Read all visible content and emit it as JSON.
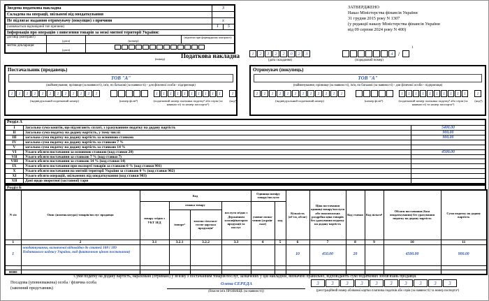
{
  "doc": {
    "title": "Податкова накладна",
    "approved": {
      "l1": "ЗАТВЕРДЖЕНО",
      "l2": "Наказ Міністерства фінансів України",
      "l3": "31 грудня 2015 року N 1307",
      "l4": "(у редакції наказу Міністерства фінансів України",
      "l5": "від 09 серпня 2024 року N 400)"
    }
  },
  "flags": {
    "zvedena_label": "Зведена податкова накладна",
    "zvedena_value": "3",
    "exempt_label": "Складена на операції, звільнені від оподаткування",
    "exempt_value": "",
    "not_issued_label": "Не підлягає наданню отримувачу (покупцю) з причини",
    "not_issued_value": "х",
    "reason_caption": "(зазначається відповідний тип причини)",
    "reason_type": [
      "1",
      "5"
    ],
    "export_label": "Інформація про операцію з вивезення товарів за межі митної території України:",
    "contract": {
      "label": "договір (контракт)",
      "date_caption": "(дата)",
      "number_caption": "(номер)",
      "forward_caption": "(відмітка при форвардному контракті)"
    },
    "customs": {
      "label": "митна декларація",
      "date_caption": "(дата)",
      "number_caption": "(номер)",
      "boxes": [
        "",
        "",
        "",
        "",
        "",
        "",
        "",
        "",
        "",
        "",
        "",
        "",
        ""
      ]
    }
  },
  "header": {
    "date_boxes": [
      "1",
      "2",
      "1",
      "2",
      "2",
      "0",
      "2",
      "3"
    ],
    "date_caption": "(дата складання)",
    "number_boxes": [
      "",
      "",
      "",
      "",
      "",
      "",
      "4"
    ],
    "slash": "/",
    "suffix_box": [
      ""
    ],
    "suffix_footnote": "1",
    "number_caption": "(порядковий номер)"
  },
  "supplier": {
    "title": "Постачальник (продавець)",
    "name": "ТОВ \"А\"",
    "name_caption": "(найменування; прізвище (за наявності), ім'я, по батькові (за наявності) - для фізичної особи - підприємця)",
    "ipn": [
      "1",
      "1",
      "1",
      "1",
      "1",
      "1",
      "1",
      "1",
      "1",
      "1",
      "1",
      "1"
    ],
    "ipn_caption": "(індивідуальний податковий номер)",
    "branch": [
      "",
      "",
      "",
      "",
      ""
    ],
    "branch_caption": "(номер філії²)",
    "tax_number": [
      "1",
      "1",
      "1",
      "1",
      "1",
      "1",
      "1",
      "1",
      "1",
      "1"
    ],
    "tax_caption": "(податковий номер платника податку³ або серія (за наявності) та номер паспорта⁵)",
    "kod": [
      "1"
    ],
    "kod_caption": "(код⁴)"
  },
  "buyer": {
    "title": "Отримувач (покупець)",
    "name": "ТОВ \"А\"",
    "name_caption": "(найменування; прізвище (за наявності), ім'я, по батькові (за наявності) - для фізичної особи - підприємця)",
    "ipn": [
      "1",
      "1",
      "1",
      "1",
      "1",
      "1",
      "1",
      "1",
      "1",
      "1",
      "1",
      "1"
    ],
    "ipn_caption": "(індивідуальний податковий номер)",
    "branch": [
      "",
      "",
      "",
      "",
      ""
    ],
    "branch_caption": "(номер філії²)",
    "tax_number": [
      "1",
      "1",
      "1",
      "1",
      "1",
      "1",
      "1",
      "1",
      "1",
      "1"
    ],
    "tax_caption": "(податковий номер платника податку³ або серія (за наявності) та номер паспорта⁵)",
    "kod": [
      "1"
    ],
    "kod_caption": "(код⁴)"
  },
  "rozdil_a": {
    "title": "Розділ А",
    "rows": [
      {
        "num": "I",
        "label": "Загальна сума коштів, що підлягають сплаті, з урахуванням податку на додану вартість",
        "value": "5400.00"
      },
      {
        "num": "II",
        "label": "Загальна сума податку на додану вартість, у тому числі:",
        "value": "900.00"
      },
      {
        "num": "III",
        "label": "загальна сума податку на додану вартість за основною ставкою",
        "value": "900.00"
      },
      {
        "num": "IV",
        "label": "загальна сума податку на додану вартість за ставкою 7 %",
        "value": ""
      },
      {
        "num": "V",
        "label": "загальна сума податку на додану вартість за ставкою 14 %",
        "value": ""
      },
      {
        "num": "VI",
        "label": "Усього обсяги постачання за основною ставкою (код ставки 20)",
        "value": "4500.00"
      },
      {
        "num": "VII",
        "label": "Усього обсяги постачання за ставкою 7 % (код ставки 7)",
        "value": ""
      },
      {
        "num": "VIII",
        "label": "Усього обсяги постачання за ставкою 14 % (код ставки 14)",
        "value": ""
      },
      {
        "num": "IX",
        "label": "Усього обсяги постачання при експорті товарів за ставкою 0 % (код ставки 901)",
        "value": ""
      },
      {
        "num": "X",
        "label": "Усього обсяги постачання на митній території України за ставкою 0 % (код ставки 902)",
        "value": ""
      },
      {
        "num": "XI",
        "label": "Усього обсяги операцій, звільнених від оподаткування (код ставки 903)",
        "value": ""
      },
      {
        "num": "XII",
        "label": "Дані щодо зворотної (заставної) тари",
        "value": ""
      }
    ]
  },
  "rozdil_b": {
    "title": "Розділ Б",
    "headers": {
      "n": "N з/п",
      "desc": "Опис (номенклатура) товарів/послуг продавця",
      "code_group": "Код",
      "ukt": "товару згідно з УКТ ЗЕД",
      "sign_group": "ознака товару",
      "import": "імпорт⁴",
      "agro": "власна сільсько-госпо-дарська продукція⁷",
      "dkpp": "послуги згідно з Державним класифікатором продукції та послуг",
      "unit_group": "Одиниця виміру товару/послуги",
      "unit_name": "умовне позна-чення (україн-ське)",
      "unit_code": "код",
      "qty": "Кількість (об'єм, обсяг)",
      "price": "Ціна постачання одиниці товару/послуги або максимальна роздрібна ціна товарів без урахування податку на додану вартість",
      "rate": "Код ставки",
      "benefit": "Код пільги⁸",
      "volume": "Обсяги постачання (база оподаткування) без урахування податку на додану вартість",
      "vat": "Сума податку на додану вартість"
    },
    "nums": [
      "1",
      "2",
      "3.1",
      "3.2.1",
      "3.2.2",
      "3.3",
      "4",
      "5",
      "6",
      "7",
      "8",
      "9",
      "10",
      "11"
    ],
    "row": {
      "n": "1",
      "desc": "оподаткування, визначеної відповідно до статей 188 і 189 Податкового кодексу України, над фактичною ціною постачання)",
      "qty": "10",
      "price": "450.00",
      "rate": "20",
      "benefit": "",
      "volume": "4500.00",
      "vat": "900.00"
    },
    "filler": "00000"
  },
  "footer": {
    "declaration": "Суми податку на додану вартість, нараховані (отримані) у зв'язку з постачанням товарів/послуг, зазначених у цій накладній, визначені правильно, відповідають сумі податкових зобов'язань продавця.",
    "official_line1": "Посадова (уповноважена) особа / фізична особа",
    "official_line2": "(законний представник)",
    "signature_name": "Олена СЕРЕДА",
    "signature_caption": "(Власне ім'я ПРІЗВИЩЕ (за наявності))",
    "rnokpp": [
      "3",
      "3",
      "3",
      "3",
      "3",
      "3",
      "3",
      "3",
      "3",
      "3"
    ],
    "rnokpp_caption": "(реєстраційний номер облікової картки платника податків або серія (за наявності) та номер паспорта⁵)"
  }
}
